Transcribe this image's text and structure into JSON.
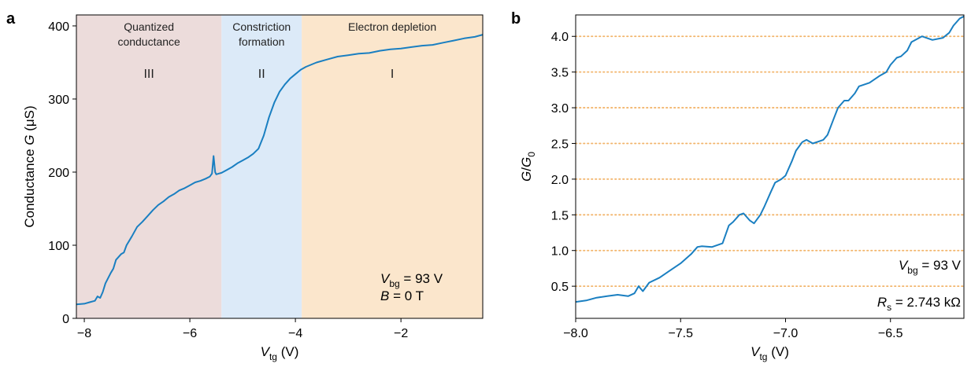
{
  "panels": {
    "a": {
      "label": "a"
    },
    "b": {
      "label": "b"
    }
  },
  "chart_data": [
    {
      "type": "line",
      "panel": "a",
      "xlabel": {
        "main": "V",
        "sub": "tg",
        "unit": " (V)"
      },
      "ylabel": {
        "pre": "Conductance ",
        "italic": "G",
        "post": " (μS)"
      },
      "xlim": [
        -8.15,
        -0.45
      ],
      "ylim": [
        0,
        415
      ],
      "xticks": [
        -8,
        -6,
        -4,
        -2
      ],
      "xtick_labels": [
        "−8",
        "−6",
        "−4",
        "−2"
      ],
      "yticks": [
        0,
        100,
        200,
        300,
        400
      ],
      "ytick_labels": [
        "0",
        "100",
        "200",
        "300",
        "400"
      ],
      "grid": false,
      "line_color": "#1a7fc1",
      "regions": [
        {
          "x0": -8.15,
          "x1": -5.4,
          "color": "#ecdcdb",
          "title": [
            "Quantized",
            "conductance"
          ],
          "roman": "III"
        },
        {
          "x0": -5.4,
          "x1": -3.88,
          "color": "#dceaf8",
          "title": [
            "Constriction",
            "formation"
          ],
          "roman": "II"
        },
        {
          "x0": -3.88,
          "x1": -0.45,
          "color": "#fbe6cc",
          "title": [
            "Electron depletion"
          ],
          "roman": "I"
        }
      ],
      "annotations": [
        {
          "var": "V",
          "sub": "bg",
          "text": " = 93 V"
        },
        {
          "var": "B",
          "sub": "",
          "text": " = 0 T"
        }
      ],
      "x": [
        -8.15,
        -8.0,
        -7.9,
        -7.8,
        -7.75,
        -7.7,
        -7.65,
        -7.6,
        -7.5,
        -7.45,
        -7.4,
        -7.3,
        -7.25,
        -7.2,
        -7.1,
        -7.0,
        -6.9,
        -6.8,
        -6.7,
        -6.6,
        -6.5,
        -6.4,
        -6.3,
        -6.2,
        -6.1,
        -6.0,
        -5.9,
        -5.8,
        -5.7,
        -5.62,
        -5.58,
        -5.55,
        -5.52,
        -5.5,
        -5.45,
        -5.4,
        -5.3,
        -5.2,
        -5.1,
        -5.0,
        -4.9,
        -4.8,
        -4.7,
        -4.6,
        -4.5,
        -4.4,
        -4.3,
        -4.2,
        -4.1,
        -4.0,
        -3.9,
        -3.8,
        -3.6,
        -3.4,
        -3.2,
        -3.0,
        -2.8,
        -2.6,
        -2.4,
        -2.2,
        -2.0,
        -1.8,
        -1.6,
        -1.4,
        -1.2,
        -1.0,
        -0.8,
        -0.6,
        -0.45
      ],
      "y": [
        19,
        20,
        22,
        24,
        30,
        28,
        36,
        48,
        62,
        68,
        80,
        88,
        90,
        100,
        112,
        125,
        132,
        140,
        148,
        155,
        160,
        166,
        170,
        175,
        178,
        182,
        186,
        188,
        191,
        194,
        198,
        222,
        200,
        197,
        198,
        199,
        203,
        207,
        212,
        216,
        220,
        225,
        232,
        250,
        275,
        295,
        310,
        320,
        328,
        334,
        340,
        344,
        350,
        354,
        358,
        360,
        362,
        363,
        366,
        368,
        369,
        371,
        373,
        374,
        377,
        380,
        383,
        385,
        388
      ]
    },
    {
      "type": "line",
      "panel": "b",
      "xlabel": {
        "main": "V",
        "sub": "tg",
        "unit": " (V)"
      },
      "ylabel": {
        "num": "G",
        "den": "G",
        "den_sub": "0"
      },
      "xlim": [
        -8.0,
        -6.15
      ],
      "ylim": [
        0.05,
        4.3
      ],
      "xticks": [
        -8.0,
        -7.5,
        -7.0,
        -6.5
      ],
      "xtick_labels": [
        "−8.0",
        "−7.5",
        "−7.0",
        "−6.5"
      ],
      "yticks": [
        0.5,
        1.0,
        1.5,
        2.0,
        2.5,
        3.0,
        3.5,
        4.0
      ],
      "ytick_labels": [
        "0.5",
        "1.0",
        "1.5",
        "2.0",
        "2.5",
        "3.0",
        "3.5",
        "4.0"
      ],
      "grid": true,
      "grid_style": "dotted horizontal at half-integers",
      "grid_color": "#f2b46a",
      "line_color": "#1a7fc1",
      "annotations": [
        {
          "var": "V",
          "sub": "bg",
          "text": " = 93 V"
        },
        {
          "var": "R",
          "sub": "s",
          "text": " = 2.743 kΩ"
        }
      ],
      "x": [
        -8.0,
        -7.95,
        -7.9,
        -7.85,
        -7.8,
        -7.75,
        -7.72,
        -7.7,
        -7.68,
        -7.65,
        -7.6,
        -7.55,
        -7.5,
        -7.45,
        -7.42,
        -7.4,
        -7.35,
        -7.3,
        -7.27,
        -7.25,
        -7.22,
        -7.2,
        -7.17,
        -7.15,
        -7.12,
        -7.1,
        -7.07,
        -7.05,
        -7.02,
        -7.0,
        -6.97,
        -6.95,
        -6.92,
        -6.9,
        -6.87,
        -6.85,
        -6.82,
        -6.8,
        -6.77,
        -6.75,
        -6.72,
        -6.7,
        -6.67,
        -6.65,
        -6.6,
        -6.55,
        -6.52,
        -6.5,
        -6.47,
        -6.45,
        -6.42,
        -6.4,
        -6.35,
        -6.3,
        -6.25,
        -6.22,
        -6.2,
        -6.17,
        -6.15
      ],
      "y": [
        0.28,
        0.3,
        0.34,
        0.36,
        0.38,
        0.36,
        0.4,
        0.5,
        0.43,
        0.55,
        0.62,
        0.72,
        0.82,
        0.95,
        1.05,
        1.06,
        1.05,
        1.1,
        1.35,
        1.4,
        1.5,
        1.52,
        1.42,
        1.38,
        1.5,
        1.62,
        1.82,
        1.95,
        2.0,
        2.05,
        2.25,
        2.4,
        2.52,
        2.55,
        2.5,
        2.52,
        2.55,
        2.62,
        2.85,
        3.0,
        3.1,
        3.1,
        3.2,
        3.3,
        3.35,
        3.45,
        3.5,
        3.6,
        3.7,
        3.72,
        3.8,
        3.92,
        4.0,
        3.95,
        3.98,
        4.05,
        4.15,
        4.25,
        4.28
      ]
    }
  ]
}
